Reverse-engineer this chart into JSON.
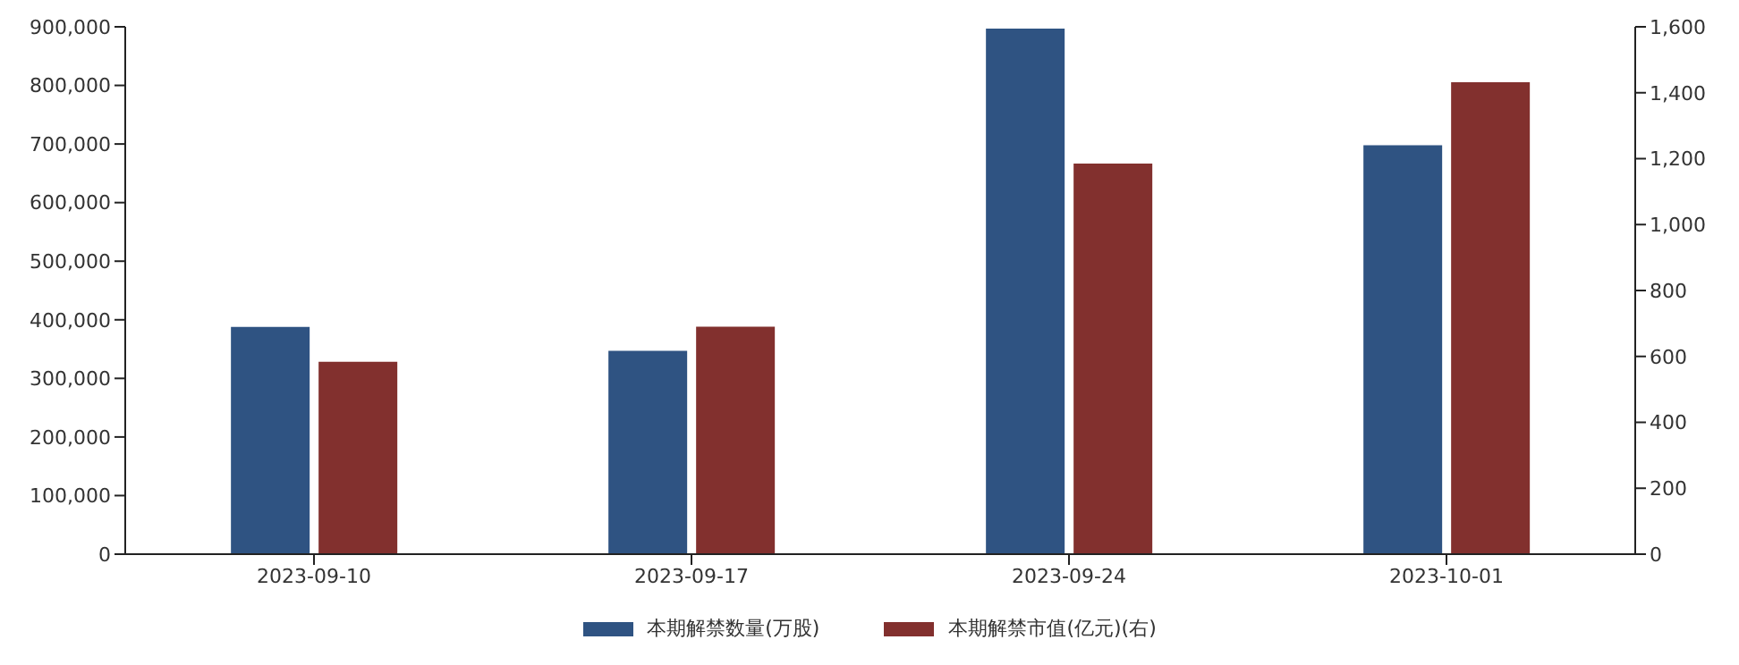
{
  "chart_data": {
    "type": "bar",
    "categories": [
      "2023-09-10",
      "2023-09-17",
      "2023-09-24",
      "2023-10-01"
    ],
    "series": [
      {
        "name": "本期解禁数量(万股)",
        "color": "#2f5382",
        "values": [
          388000,
          347000,
          897000,
          698000
        ]
      },
      {
        "name": "本期解禁市值(亿元)(右)",
        "color": "#82302e",
        "axis": "y2",
        "values": [
          584,
          690,
          1185,
          1432
        ]
      }
    ],
    "ylim": [
      0,
      900000
    ],
    "yticks": [
      0,
      {
        "value": 100000,
        "label": "100,000"
      },
      {
        "value": 200000,
        "label": "200,000"
      },
      {
        "value": 300000,
        "label": "300,000"
      },
      {
        "value": 400000,
        "label": "400,000"
      },
      {
        "value": 500000,
        "label": "500,000"
      },
      {
        "value": 600000,
        "label": "600,000"
      },
      {
        "value": 700000,
        "label": "700,000"
      },
      {
        "value": 800000,
        "label": "800,000"
      },
      {
        "value": 900000,
        "label": "900,000"
      }
    ],
    "y2lim": [
      0,
      1600
    ],
    "y2ticks": [
      0,
      200,
      400,
      600,
      800,
      {
        "value": 1000,
        "label": "1,000"
      },
      {
        "value": 1200,
        "label": "1,200"
      },
      {
        "value": 1400,
        "label": "1,400"
      },
      {
        "value": 1600,
        "label": "1,600"
      }
    ],
    "grid": false,
    "legend": "bottom"
  }
}
